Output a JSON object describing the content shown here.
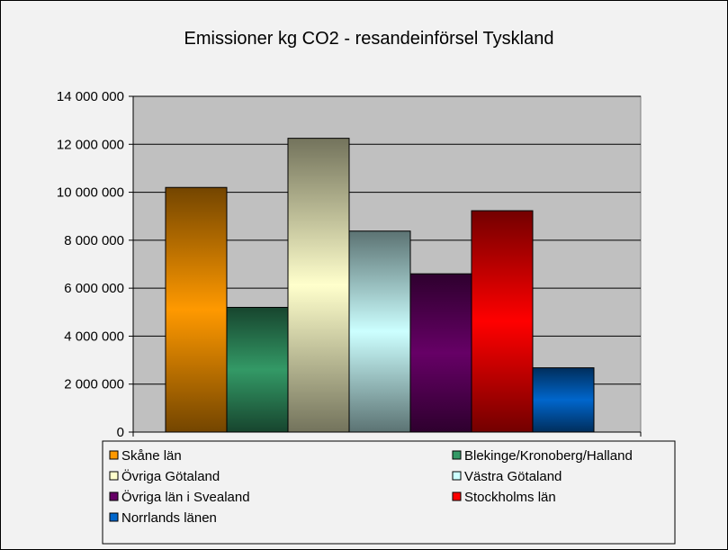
{
  "chart_data": {
    "type": "bar",
    "title": "Emissioner kg CO2 - resandeinförsel Tyskland",
    "xlabel": "",
    "ylabel": "",
    "ylim": [
      0,
      14000000
    ],
    "yticks": [
      0,
      2000000,
      4000000,
      6000000,
      8000000,
      10000000,
      12000000,
      14000000
    ],
    "ytick_labels": [
      "0",
      "2 000 000",
      "4 000 000",
      "6 000 000",
      "8 000 000",
      "10 000 000",
      "12 000 000",
      "14 000 000"
    ],
    "grid": true,
    "legend_position": "bottom",
    "series": [
      {
        "name": "Skåne län",
        "value": 10200000,
        "color": "#FF9900"
      },
      {
        "name": "Blekinge/Kronoberg/Halland",
        "value": 5200000,
        "color": "#339966"
      },
      {
        "name": "Övriga Götaland",
        "value": 12250000,
        "color": "#FFFFCC"
      },
      {
        "name": "Västra Götaland",
        "value": 8380000,
        "color": "#CCFFFF"
      },
      {
        "name": "Övriga län i Svealand",
        "value": 6600000,
        "color": "#660066"
      },
      {
        "name": "Stockholms län",
        "value": 9230000,
        "color": "#FF0000"
      },
      {
        "name": "Norrlands länen",
        "value": 2680000,
        "color": "#0066CC"
      }
    ]
  }
}
